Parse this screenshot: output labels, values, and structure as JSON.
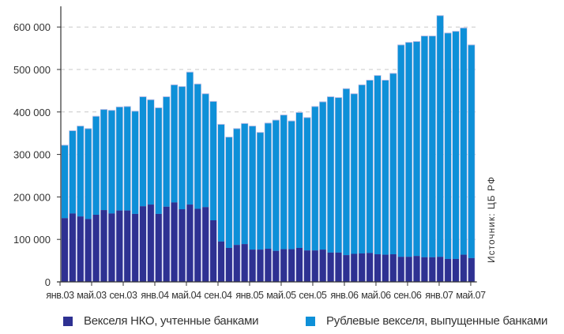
{
  "chart_data": {
    "type": "bar",
    "stacked": true,
    "title": "",
    "xlabel": "",
    "ylabel": "",
    "ylim": [
      0,
      650000
    ],
    "yticks": [
      0,
      100000,
      200000,
      300000,
      400000,
      500000,
      600000
    ],
    "ytick_labels": [
      "0",
      "100 000",
      "200 000",
      "300 000",
      "400 000",
      "500 000",
      "600 000"
    ],
    "grid": "horizontal dashed",
    "categories": [
      "янв.03",
      "фев.03",
      "мар.03",
      "апр.03",
      "май.03",
      "июн.03",
      "июл.03",
      "авг.03",
      "сен.03",
      "окт.03",
      "ноя.03",
      "дек.03",
      "янв.04",
      "фев.04",
      "мар.04",
      "апр.04",
      "май.04",
      "июн.04",
      "июл.04",
      "авг.04",
      "сен.04",
      "окт.04",
      "ноя.04",
      "дек.04",
      "янв.05",
      "фев.05",
      "мар.05",
      "апр.05",
      "май.05",
      "июн.05",
      "июл.05",
      "авг.05",
      "сен.05",
      "окт.05",
      "ноя.05",
      "дек.05",
      "янв.06",
      "фев.06",
      "мар.06",
      "апр.06",
      "май.06",
      "июн.06",
      "июл.06",
      "авг.06",
      "сен.06",
      "окт.06",
      "ноя.06",
      "дек.06",
      "янв.07",
      "фев.07",
      "мар.07",
      "апр.07",
      "май.07"
    ],
    "xtick_labels": [
      "янв.03",
      "май.03",
      "сен.03",
      "янв.04",
      "май.04",
      "сен.04",
      "янв.05",
      "май.05",
      "сен.05",
      "янв.06",
      "май.06",
      "сен.06",
      "янв.07",
      "май.07"
    ],
    "xtick_every": 4,
    "series": [
      {
        "name": "Векселя НКО, учтенные банками",
        "color": "#2e3192",
        "values": [
          150000,
          161000,
          154000,
          148000,
          158000,
          169000,
          161000,
          168000,
          168000,
          160000,
          178000,
          182000,
          160000,
          177000,
          187000,
          171000,
          182000,
          172000,
          176000,
          145000,
          95000,
          80000,
          87000,
          89000,
          76000,
          76000,
          78000,
          73000,
          77000,
          77000,
          80000,
          74000,
          74000,
          76000,
          69000,
          69000,
          63000,
          66000,
          67000,
          68000,
          65000,
          64000,
          65000,
          59000,
          59000,
          61000,
          58000,
          58000,
          59000,
          54000,
          54000,
          64000,
          56000
        ]
      },
      {
        "name": "Рублевые векселя, выпущенные банками",
        "color": "#0e90d8",
        "totals": [
          321000,
          355000,
          366000,
          360000,
          389000,
          405000,
          403000,
          411000,
          412000,
          401000,
          435000,
          428000,
          409000,
          435000,
          463000,
          459000,
          493000,
          465000,
          442000,
          424000,
          370000,
          340000,
          360000,
          372000,
          366000,
          351000,
          373000,
          380000,
          392000,
          378000,
          398000,
          386000,
          412000,
          423000,
          435000,
          433000,
          454000,
          442000,
          463000,
          474000,
          485000,
          474000,
          490000,
          557000,
          563000,
          565000,
          578000,
          578000,
          626000,
          585000,
          589000,
          597000,
          557000
        ]
      }
    ],
    "legend_position": "bottom",
    "annotation": "Источник: ЦБ РФ"
  },
  "legend": {
    "items": [
      {
        "label": "Векселя НКО, учтенные банками",
        "color": "#2e3192"
      },
      {
        "label": "Рублевые векселя, выпущенные банками",
        "color": "#0e90d8"
      }
    ]
  }
}
